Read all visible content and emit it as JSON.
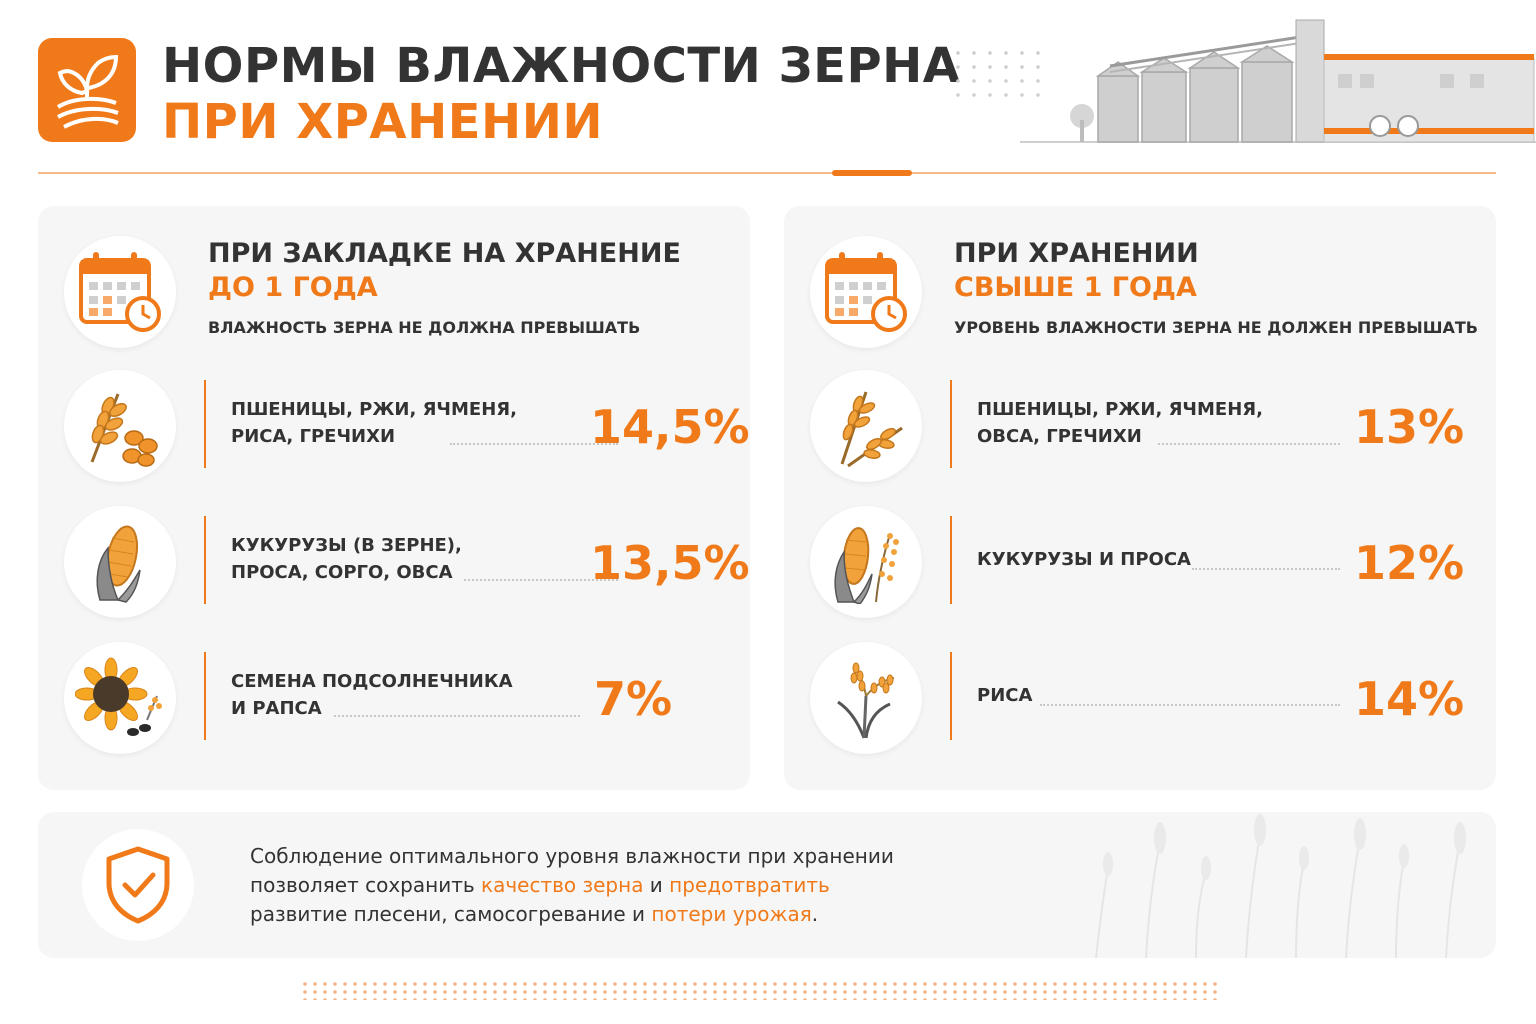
{
  "header": {
    "title_line1": "НОРМЫ ВЛАЖНОСТИ ЗЕРНА",
    "title_line2": "ПРИ ХРАНЕНИИ"
  },
  "colors": {
    "accent": "#f07a1a",
    "text": "#333333",
    "panel": "#f6f6f6"
  },
  "left_panel": {
    "icon": "calendar-clock-icon",
    "heading": "ПРИ ЗАКЛАДКЕ НА ХРАНЕНИЕ",
    "heading_accent": "ДО 1 ГОДА",
    "subheading": "ВЛАЖНОСТЬ ЗЕРНА НЕ ДОЛЖНА ПРЕВЫШАТЬ",
    "rows": [
      {
        "icon": "wheat-grains-icon",
        "line1": "ПШЕНИЦЫ, РЖИ, ЯЧМЕНЯ,",
        "line2": "РИСА, ГРЕЧИХИ",
        "value": "14,5%"
      },
      {
        "icon": "corn-icon",
        "line1": "КУКУРУЗЫ (В ЗЕРНЕ),",
        "line2": "ПРОСА, СОРГО, ОВСА",
        "value": "13,5%"
      },
      {
        "icon": "sunflower-icon",
        "line1": "СЕМЕНА ПОДСОЛНЕЧНИКА",
        "line2": "И РАПСА",
        "value": "7%"
      }
    ]
  },
  "right_panel": {
    "icon": "calendar-clock-icon",
    "heading": "ПРИ ХРАНЕНИИ",
    "heading_accent": "СВЫШЕ 1 ГОДА",
    "subheading": "УРОВЕНЬ ВЛАЖНОСТИ ЗЕРНА НЕ ДОЛЖЕН ПРЕВЫШАТЬ",
    "rows": [
      {
        "icon": "wheat-ears-icon",
        "line1": "ПШЕНИЦЫ, РЖИ, ЯЧМЕНЯ,",
        "line2": "ОВСА, ГРЕЧИХИ",
        "value": "13%"
      },
      {
        "icon": "corn-millet-icon",
        "line1": "КУКУРУЗЫ И ПРОСА",
        "line2": "",
        "value": "12%"
      },
      {
        "icon": "rice-icon",
        "line1": "РИСА",
        "line2": "",
        "value": "14%"
      }
    ]
  },
  "banner": {
    "icon": "shield-check-icon",
    "line1": "Соблюдение оптимального уровня влажности при хранении",
    "line2_a": "позволяет сохранить ",
    "line2_hl1": "качество зерна",
    "line2_b": " и ",
    "line2_hl2": "предотвратить",
    "line3_a": "развитие плесени, самосогревание и ",
    "line3_hl": "потери урожая",
    "line3_b": "."
  }
}
